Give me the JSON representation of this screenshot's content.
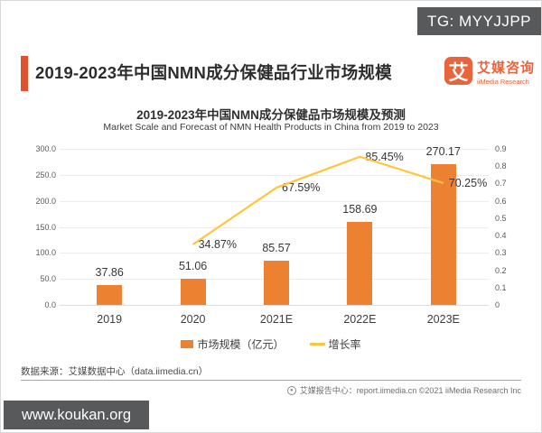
{
  "watermarks": {
    "top": "TG: MYYJJPP",
    "bottom": "www.koukan.org"
  },
  "header": {
    "title": "2019-2023年中国NMN成分保健品行业市场规模",
    "logo": {
      "glyph": "艾",
      "name_cn": "艾媒咨询",
      "name_en": "iiMedia Research"
    }
  },
  "chart_data": {
    "type": "combo",
    "title": "2019-2023年中国NMN成分保健品市场规模及预测",
    "subtitle": "Market Scale and Forecast of NMN Health Products in China from 2019 to 2023",
    "categories": [
      "2019",
      "2020",
      "2021E",
      "2022E",
      "2023E"
    ],
    "series": [
      {
        "name": "市场规模（亿元）",
        "type": "bar",
        "color": "#ED8132",
        "values": [
          37.86,
          51.06,
          85.57,
          158.69,
          270.17
        ],
        "labels": [
          "37.86",
          "51.06",
          "85.57",
          "158.69",
          "270.17"
        ]
      },
      {
        "name": "增长率",
        "type": "line",
        "color": "#FFC53D",
        "values": [
          null,
          0.3487,
          0.6759,
          0.8545,
          0.7025
        ],
        "labels": [
          null,
          "34.87%",
          "67.59%",
          "85.45%",
          "70.25%"
        ]
      }
    ],
    "left_axis": {
      "min": 0,
      "max": 300,
      "ticks": [
        "300.0",
        "250.0",
        "200.0",
        "150.0",
        "100.0",
        "50.0",
        "0.0"
      ]
    },
    "right_axis": {
      "min": 0,
      "max": 0.9,
      "ticks": [
        "0.9",
        "0.8",
        "0.7",
        "0.6",
        "0.5",
        "0.4",
        "0.3",
        "0.2",
        "0.1",
        "0"
      ]
    },
    "grid": true,
    "legend_position": "bottom"
  },
  "footer": {
    "source": "数据来源：艾媒数据中心（data.iimedia.cn）",
    "report_center": "艾媒报告中心：report.iimedia.cn  ©2021  iiMedia Research  Inc"
  }
}
